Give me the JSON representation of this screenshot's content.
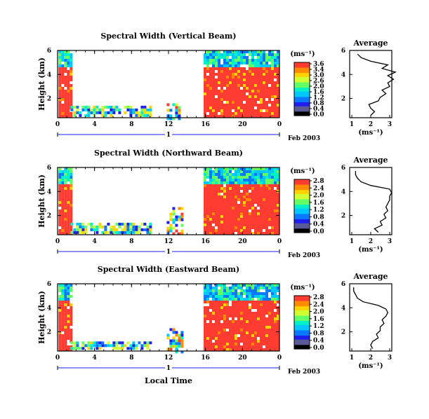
{
  "colors": {
    "palette": [
      "#000000",
      "#5a5a96",
      "#1e1ef0",
      "#0a78ff",
      "#00c8ff",
      "#00f0c8",
      "#64ff64",
      "#d2ff32",
      "#ffd200",
      "#ff8c00",
      "#ff3c32"
    ],
    "line": "#000000"
  },
  "xaxis": {
    "ticks": [
      "0",
      "4",
      "8",
      "12",
      "16",
      "20",
      "0"
    ],
    "day_label": "1",
    "date_label": "Feb 2003",
    "label": "Local Time"
  },
  "chart_data": [
    {
      "type": "heatmap",
      "title": "Spectral Width (Vertical Beam)",
      "ylabel": "Height (km)",
      "xlabel": "Local Time",
      "xlim": [
        0,
        24
      ],
      "ylim": [
        0.4,
        6
      ],
      "yticks": [
        "6",
        "4",
        "2"
      ],
      "colorbar": {
        "unit": "(ms⁻¹)",
        "ticks": [
          "3.6",
          "3.4",
          "3.0",
          "2.6",
          "2.0",
          "1.6",
          "1.2",
          "0.8",
          "0.4",
          "0.0"
        ]
      },
      "average": {
        "title": "Average",
        "xlabel": "(ms⁻¹)",
        "xticks": [
          "1",
          "2",
          "3"
        ],
        "yticks": [
          "6",
          "4",
          "2"
        ],
        "profile": [
          [
            0.6,
            2.0
          ],
          [
            0.9,
            2.2
          ],
          [
            1.2,
            2.0
          ],
          [
            1.5,
            1.9
          ],
          [
            1.8,
            2.4
          ],
          [
            2.1,
            2.5
          ],
          [
            2.4,
            2.8
          ],
          [
            2.7,
            2.6
          ],
          [
            3.0,
            3.0
          ],
          [
            3.3,
            2.9
          ],
          [
            3.6,
            3.2
          ],
          [
            3.9,
            2.9
          ],
          [
            4.2,
            3.3
          ],
          [
            4.5,
            2.6
          ],
          [
            4.8,
            2.9
          ],
          [
            5.1,
            2.0
          ],
          [
            5.4,
            1.5
          ],
          [
            5.7,
            1.3
          ]
        ]
      },
      "segments": [
        {
          "x": [
            0.1,
            1.4
          ],
          "y": [
            0.4,
            6.0
          ],
          "top_band": [
            4.8,
            6.0
          ]
        },
        {
          "x": [
            1.4,
            10.2
          ],
          "y": [
            0.6,
            1.4
          ]
        },
        {
          "x": [
            11.8,
            13.2
          ],
          "y": [
            0.4,
            1.6
          ]
        },
        {
          "x": [
            15.8,
            23.8
          ],
          "y": [
            0.4,
            6.0
          ],
          "top_band": [
            4.8,
            6.0
          ]
        }
      ]
    },
    {
      "type": "heatmap",
      "title": "Spectral Width (Northward Beam)",
      "ylabel": "Height (km)",
      "xlabel": "Local Time",
      "xlim": [
        0,
        24
      ],
      "ylim": [
        0.4,
        6
      ],
      "yticks": [
        "6",
        "4",
        "2"
      ],
      "colorbar": {
        "unit": "(ms⁻¹)",
        "ticks": [
          "2.8",
          "2.4",
          "2.0",
          "1.6",
          "1.2",
          "0.8",
          "0.4",
          "0.0"
        ]
      },
      "average": {
        "title": "Average",
        "xlabel": "(ms⁻¹)",
        "xticks": [
          "1",
          "2",
          "3"
        ],
        "yticks": [
          "6",
          "4",
          "2"
        ],
        "profile": [
          [
            0.6,
            2.4
          ],
          [
            0.9,
            2.2
          ],
          [
            1.2,
            2.6
          ],
          [
            1.5,
            2.5
          ],
          [
            1.8,
            2.8
          ],
          [
            2.1,
            2.7
          ],
          [
            2.4,
            2.9
          ],
          [
            2.7,
            2.8
          ],
          [
            3.0,
            2.9
          ],
          [
            3.3,
            3.0
          ],
          [
            3.6,
            3.0
          ],
          [
            3.9,
            3.1
          ],
          [
            4.2,
            3.0
          ],
          [
            4.5,
            2.0
          ],
          [
            4.8,
            1.5
          ],
          [
            5.1,
            1.3
          ],
          [
            5.4,
            1.2
          ],
          [
            5.7,
            1.2
          ]
        ]
      },
      "segments": [
        {
          "x": [
            0.1,
            1.4
          ],
          "y": [
            0.4,
            6.0
          ],
          "top_band": [
            4.6,
            6.0
          ]
        },
        {
          "x": [
            1.4,
            10.2
          ],
          "y": [
            0.5,
            1.4
          ]
        },
        {
          "x": [
            11.8,
            13.5
          ],
          "y": [
            0.4,
            2.7
          ]
        },
        {
          "x": [
            15.8,
            23.8
          ],
          "y": [
            0.4,
            6.0
          ],
          "top_band": [
            4.6,
            6.0
          ]
        }
      ]
    },
    {
      "type": "heatmap",
      "title": "Spectral Width (Eastward Beam)",
      "ylabel": "Height (km)",
      "xlabel": "Local Time",
      "xlim": [
        0,
        24
      ],
      "ylim": [
        0.4,
        6
      ],
      "yticks": [
        "6",
        "4",
        "2"
      ],
      "colorbar": {
        "unit": "(ms⁻¹)",
        "ticks": [
          "2.8",
          "2.4",
          "2.0",
          "1.6",
          "1.2",
          "0.8",
          "0.4",
          "0.0"
        ]
      },
      "average": {
        "title": "Average",
        "xlabel": "(ms⁻¹)",
        "xticks": [
          "1",
          "2",
          "3"
        ],
        "yticks": [
          "6",
          "4",
          "2"
        ],
        "profile": [
          [
            0.6,
            2.1
          ],
          [
            0.9,
            2.0
          ],
          [
            1.2,
            2.1
          ],
          [
            1.5,
            2.4
          ],
          [
            1.8,
            2.3
          ],
          [
            2.1,
            2.5
          ],
          [
            2.4,
            2.5
          ],
          [
            2.7,
            2.7
          ],
          [
            3.0,
            2.6
          ],
          [
            3.3,
            2.8
          ],
          [
            3.6,
            2.9
          ],
          [
            3.9,
            2.8
          ],
          [
            4.2,
            2.4
          ],
          [
            4.5,
            1.6
          ],
          [
            4.8,
            1.3
          ],
          [
            5.1,
            1.2
          ],
          [
            5.4,
            1.1
          ],
          [
            5.7,
            1.1
          ]
        ]
      },
      "segments": [
        {
          "x": [
            0.1,
            1.4
          ],
          "y": [
            0.4,
            6.0
          ],
          "top_band": [
            4.6,
            6.0
          ]
        },
        {
          "x": [
            1.4,
            10.2
          ],
          "y": [
            0.5,
            1.2
          ]
        },
        {
          "x": [
            11.8,
            13.5
          ],
          "y": [
            0.4,
            2.3
          ]
        },
        {
          "x": [
            15.8,
            23.8
          ],
          "y": [
            0.4,
            6.0
          ],
          "top_band": [
            4.6,
            6.0
          ]
        }
      ]
    }
  ]
}
